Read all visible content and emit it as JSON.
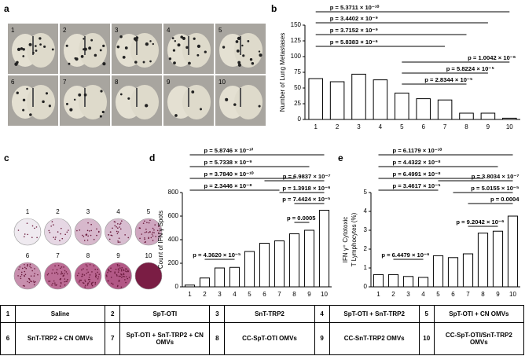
{
  "panel_labels": [
    "a",
    "b",
    "c",
    "d",
    "e"
  ],
  "photos_a": {
    "labels": [
      "1",
      "2",
      "3",
      "4",
      "5",
      "6",
      "7",
      "8",
      "9",
      "10"
    ]
  },
  "photos_c": {
    "labels": [
      "1",
      "2",
      "3",
      "4",
      "5",
      "6",
      "7",
      "8",
      "9",
      "10"
    ]
  },
  "chart_data": [
    {
      "type": "bar",
      "ylabel": "Number of Lung Metastases",
      "categories": [
        "1",
        "2",
        "3",
        "4",
        "5",
        "6",
        "7",
        "8",
        "9",
        "10"
      ],
      "values": [
        65,
        60,
        72,
        63,
        42,
        33,
        31,
        10,
        10,
        2
      ],
      "color": "#ffffff",
      "ylim": [
        0,
        150
      ],
      "yticks": [
        0,
        25,
        50,
        75,
        100,
        125,
        150
      ],
      "annotations": [
        "p = 5.3711 × 10⁻¹⁰",
        "p = 3.4402 × 10⁻⁹",
        "p = 3.7152 × 10⁻⁹",
        "p = 5.8383 × 10⁻⁶",
        "p = 1.0042 × 10⁻⁶",
        "p = 5.8224 × 10⁻⁵",
        "p = 2.8344 × 10⁻⁵"
      ]
    },
    {
      "type": "bar",
      "ylabel": "Count of IFN γ Spots",
      "categories": [
        "1",
        "2",
        "3",
        "4",
        "5",
        "6",
        "7",
        "8",
        "9",
        "10"
      ],
      "values": [
        15,
        75,
        160,
        165,
        300,
        370,
        390,
        450,
        480,
        650
      ],
      "color": "#ffffff",
      "ylim": [
        0,
        800
      ],
      "yticks": [
        0,
        200,
        400,
        600,
        800
      ],
      "annotations": [
        "p = 5.8746 × 10⁻¹²",
        "p = 5.7338 × 10⁻⁹",
        "p = 3.7840 × 10⁻¹⁰",
        "p = 2.3446 × 10⁻⁸",
        "p = 6.9837 × 10⁻⁷",
        "p = 1.3918 × 10⁻⁶",
        "p = 7.4424 × 10⁻⁵",
        "p = 0.0005",
        "p = 4.3620 × 10⁻⁵"
      ]
    },
    {
      "type": "bar",
      "ylabel": [
        "IFN γ⁺ Cytotoxic",
        "T Lymphocytes (%)"
      ],
      "categories": [
        "1",
        "2",
        "3",
        "4",
        "5",
        "6",
        "7",
        "8",
        "9",
        "10"
      ],
      "values": [
        0.65,
        0.65,
        0.55,
        0.5,
        1.65,
        1.55,
        1.75,
        2.85,
        2.95,
        3.75
      ],
      "color": "#ffffff",
      "ylim": [
        0,
        5
      ],
      "yticks": [
        0,
        1,
        2,
        3,
        4,
        5
      ],
      "annotations": [
        "p = 6.1179 × 10⁻¹⁰",
        "p = 4.4322 × 10⁻⁸",
        "p = 6.4991 × 10⁻⁸",
        "p = 3.4617 × 10⁻⁵",
        "p = 3.8034 × 10⁻⁷",
        "p = 5.0155 × 10⁻⁵",
        "p = 0.0004",
        "p = 9.2042 × 10⁻⁶",
        "p = 6.4479 × 10⁻⁶"
      ]
    }
  ],
  "table": {
    "rows": [
      [
        [
          "1",
          "Saline"
        ],
        [
          "2",
          "SpT-OTI"
        ],
        [
          "3",
          "SnT-TRP2"
        ],
        [
          "4",
          "SpT-OTI + SnT-TRP2"
        ],
        [
          "5",
          "SpT-OTI + CN OMVs"
        ]
      ],
      [
        [
          "6",
          "SnT-TRP2 + CN OMVs"
        ],
        [
          "7",
          "SpT-OTI + SnT-TRP2 + CN OMVs"
        ],
        [
          "8",
          "CC-SpT-OTI OMVs"
        ],
        [
          "9",
          "CC-SnT-TRP2 OMVs"
        ],
        [
          "10",
          "CC-SpT-OTI/SnT-TRP2 OMVs"
        ]
      ]
    ]
  }
}
